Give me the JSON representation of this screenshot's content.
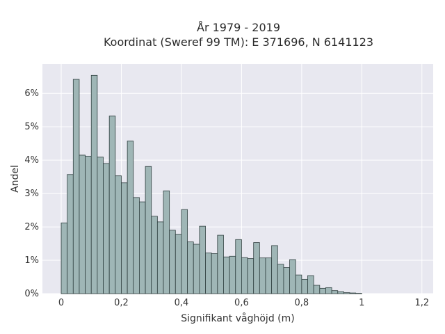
{
  "chart_data": {
    "type": "bar",
    "title_line1": "År 1979 - 2019",
    "title_line2": "Koordinat (Sweref 99 TM): E 371696, N 6141123",
    "xlabel": "Signifikant våghöjd (m)",
    "ylabel": "Andel",
    "x_range": [
      -0.0625,
      1.2375
    ],
    "y_range": [
      0,
      0.0688
    ],
    "x_ticks": [
      {
        "value": 0,
        "label": "0"
      },
      {
        "value": 0.2,
        "label": "0,2"
      },
      {
        "value": 0.4,
        "label": "0,4"
      },
      {
        "value": 0.6,
        "label": "0,6"
      },
      {
        "value": 0.8,
        "label": "0,8"
      },
      {
        "value": 1.0,
        "label": "1"
      },
      {
        "value": 1.2,
        "label": "1,2"
      }
    ],
    "y_ticks": [
      {
        "value": 0,
        "label": "0%"
      },
      {
        "value": 0.01,
        "label": "1%"
      },
      {
        "value": 0.02,
        "label": "2%"
      },
      {
        "value": 0.03,
        "label": "3%"
      },
      {
        "value": 0.04,
        "label": "4%"
      },
      {
        "value": 0.05,
        "label": "5%"
      },
      {
        "value": 0.06,
        "label": "6%"
      }
    ],
    "bin_start": 0,
    "bin_width": 0.02,
    "values": [
      0.0212,
      0.0357,
      0.0642,
      0.0415,
      0.0412,
      0.0654,
      0.0409,
      0.039,
      0.0532,
      0.0353,
      0.0332,
      0.0457,
      0.0288,
      0.0275,
      0.0381,
      0.0232,
      0.0215,
      0.0308,
      0.019,
      0.0178,
      0.0252,
      0.0155,
      0.0148,
      0.0202,
      0.0122,
      0.012,
      0.0175,
      0.011,
      0.0112,
      0.0162,
      0.0108,
      0.0105,
      0.0153,
      0.0107,
      0.0107,
      0.0144,
      0.0088,
      0.0078,
      0.0102,
      0.0056,
      0.0043,
      0.0054,
      0.0025,
      0.0016,
      0.0018,
      0.0009,
      0.0006,
      0.0003,
      0.0002,
      0.0001
    ],
    "grid": true,
    "colors": {
      "bar_fill": "#9fb6b6",
      "bar_stroke": "#2f3f3f",
      "plot_background": "#e8e8f0",
      "grid": "#ffffff"
    }
  }
}
